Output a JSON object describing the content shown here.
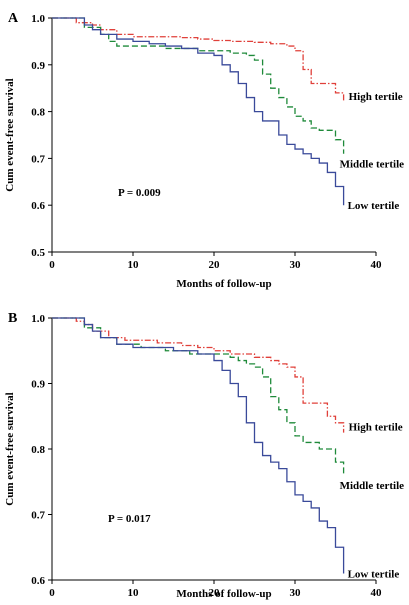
{
  "colors": {
    "low": "#3a4a9a",
    "middle": "#1f8a3a",
    "high": "#e0403a"
  },
  "chart_data": [
    {
      "type": "line",
      "panel": "A",
      "xlabel": "Months of follow-up",
      "ylabel": "Cum event-free survival",
      "xlim": [
        0,
        40
      ],
      "ylim": [
        0.5,
        1.0
      ],
      "xticks": [
        0,
        10,
        20,
        30,
        40
      ],
      "yticks": [
        0.5,
        0.6,
        0.7,
        0.8,
        0.9,
        1.0
      ],
      "grid": false,
      "p_value": "P = 0.009",
      "series": [
        {
          "name": "High tertile",
          "style": "dashdot",
          "color_key": "high",
          "x": [
            0,
            2,
            3,
            5,
            6,
            8,
            10,
            16,
            18,
            20,
            22,
            25,
            27,
            29,
            30,
            31,
            32,
            33,
            35,
            36
          ],
          "y": [
            1.0,
            1.0,
            0.99,
            0.985,
            0.975,
            0.965,
            0.96,
            0.958,
            0.955,
            0.952,
            0.95,
            0.948,
            0.945,
            0.94,
            0.93,
            0.89,
            0.86,
            0.86,
            0.84,
            0.82
          ]
        },
        {
          "name": "Middle tertile",
          "style": "dashed",
          "color_key": "middle",
          "x": [
            0,
            2,
            4,
            6,
            7,
            8,
            10,
            14,
            18,
            20,
            22,
            24,
            25,
            26,
            27,
            28,
            29,
            30,
            31,
            32,
            33,
            35,
            36
          ],
          "y": [
            1.0,
            1.0,
            0.98,
            0.965,
            0.95,
            0.94,
            0.94,
            0.935,
            0.93,
            0.93,
            0.925,
            0.92,
            0.91,
            0.88,
            0.85,
            0.83,
            0.81,
            0.79,
            0.78,
            0.765,
            0.76,
            0.74,
            0.71
          ]
        },
        {
          "name": "Low tertile",
          "style": "solid",
          "color_key": "low",
          "x": [
            0,
            2,
            4,
            5,
            6,
            8,
            10,
            12,
            14,
            16,
            18,
            20,
            21,
            22,
            23,
            24,
            25,
            26,
            28,
            29,
            30,
            31,
            32,
            33,
            34,
            35,
            36
          ],
          "y": [
            1.0,
            1.0,
            0.985,
            0.975,
            0.965,
            0.955,
            0.95,
            0.945,
            0.94,
            0.935,
            0.925,
            0.92,
            0.9,
            0.885,
            0.86,
            0.83,
            0.8,
            0.78,
            0.75,
            0.73,
            0.72,
            0.71,
            0.7,
            0.69,
            0.67,
            0.64,
            0.6
          ]
        }
      ]
    },
    {
      "type": "line",
      "panel": "B",
      "xlabel": "Months of follow-up",
      "ylabel": "Cum event-free survival",
      "xlim": [
        0,
        40
      ],
      "ylim": [
        0.6,
        1.0
      ],
      "xticks": [
        0,
        10,
        20,
        30,
        40
      ],
      "yticks": [
        0.6,
        0.7,
        0.8,
        0.9,
        1.0
      ],
      "grid": false,
      "p_value": "P = 0.017",
      "series": [
        {
          "name": "High tertile",
          "style": "dashdot",
          "color_key": "high",
          "x": [
            0,
            2,
            3,
            4,
            5,
            7,
            9,
            13,
            16,
            18,
            20,
            22,
            25,
            27,
            28,
            29,
            30,
            31,
            33,
            34,
            35,
            36
          ],
          "y": [
            1.0,
            1.0,
            0.995,
            0.99,
            0.98,
            0.97,
            0.966,
            0.962,
            0.958,
            0.955,
            0.95,
            0.945,
            0.94,
            0.935,
            0.93,
            0.925,
            0.91,
            0.87,
            0.87,
            0.85,
            0.84,
            0.825
          ]
        },
        {
          "name": "Middle tertile",
          "style": "dashed",
          "color_key": "middle",
          "x": [
            0,
            2,
            4,
            6,
            8,
            11,
            14,
            17,
            20,
            22,
            23,
            24,
            25,
            26,
            27,
            28,
            29,
            30,
            31,
            33,
            35,
            36
          ],
          "y": [
            1.0,
            1.0,
            0.985,
            0.97,
            0.96,
            0.955,
            0.95,
            0.945,
            0.945,
            0.94,
            0.935,
            0.93,
            0.925,
            0.91,
            0.88,
            0.86,
            0.84,
            0.82,
            0.81,
            0.8,
            0.78,
            0.76
          ]
        },
        {
          "name": "Low tertile",
          "style": "solid",
          "color_key": "low",
          "x": [
            0,
            3,
            4,
            5,
            6,
            8,
            10,
            12,
            15,
            18,
            20,
            21,
            22,
            23,
            24,
            25,
            26,
            27,
            28,
            29,
            30,
            31,
            32,
            33,
            34,
            35,
            36
          ],
          "y": [
            1.0,
            1.0,
            0.99,
            0.98,
            0.97,
            0.96,
            0.955,
            0.955,
            0.95,
            0.945,
            0.935,
            0.92,
            0.9,
            0.88,
            0.84,
            0.81,
            0.79,
            0.78,
            0.77,
            0.75,
            0.73,
            0.72,
            0.71,
            0.69,
            0.68,
            0.65,
            0.61
          ]
        }
      ]
    }
  ]
}
